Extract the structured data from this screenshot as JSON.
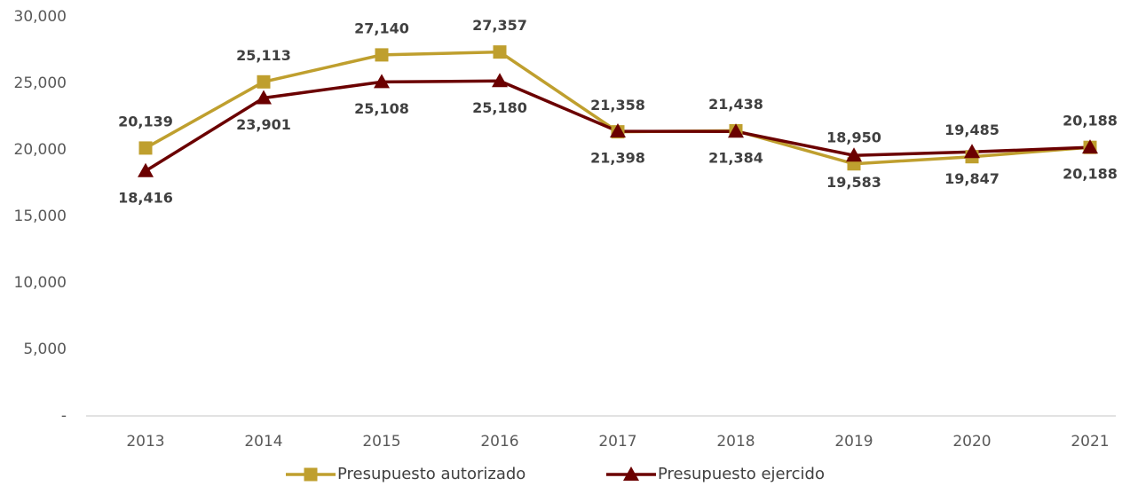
{
  "chart_data": {
    "type": "line",
    "categories": [
      "2013",
      "2014",
      "2015",
      "2016",
      "2017",
      "2018",
      "2019",
      "2020",
      "2021"
    ],
    "series": [
      {
        "name": "Presupuesto autorizado",
        "color": "#bf9f2e",
        "marker": "square",
        "values": [
          20139,
          25113,
          27140,
          27357,
          21358,
          21438,
          18950,
          19485,
          20188
        ],
        "value_labels": [
          "20,139",
          "25,113",
          "27,140",
          "27,357",
          "21,358",
          "21,438",
          "18,950",
          "19,485",
          "20,188"
        ]
      },
      {
        "name": "Presupuesto ejercido",
        "color": "#6b0000",
        "marker": "triangle",
        "values": [
          18416,
          23901,
          25108,
          25180,
          21398,
          21384,
          19583,
          19847,
          20188
        ],
        "value_labels": [
          "18,416",
          "23,901",
          "25,108",
          "25,180",
          "21,398",
          "21,384",
          "19,583",
          "19,847",
          "20,188"
        ]
      }
    ],
    "ylim": [
      0,
      30000
    ],
    "yticks": [
      {
        "value": 0,
        "label": "-"
      },
      {
        "value": 5000,
        "label": "5,000"
      },
      {
        "value": 10000,
        "label": "10,000"
      },
      {
        "value": 15000,
        "label": "15,000"
      },
      {
        "value": 20000,
        "label": "20,000"
      },
      {
        "value": 25000,
        "label": "25,000"
      },
      {
        "value": 30000,
        "label": "30,000"
      }
    ],
    "grid": false,
    "legend": "bottom"
  }
}
